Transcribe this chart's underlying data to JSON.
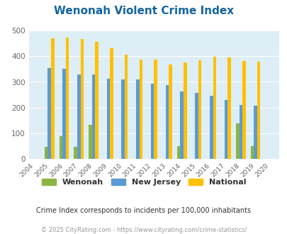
{
  "title": "Wenonah Violent Crime Index",
  "years": [
    2004,
    2005,
    2006,
    2007,
    2008,
    2009,
    2010,
    2011,
    2012,
    2013,
    2014,
    2015,
    2016,
    2017,
    2018,
    2019,
    2020
  ],
  "wenonah": [
    0,
    47,
    90,
    47,
    133,
    0,
    0,
    0,
    0,
    0,
    50,
    0,
    0,
    0,
    138,
    50,
    0
  ],
  "new_jersey": [
    0,
    355,
    350,
    328,
    328,
    312,
    309,
    309,
    292,
    287,
    262,
    256,
    247,
    231,
    210,
    208,
    0
  ],
  "national": [
    0,
    469,
    473,
    466,
    455,
    432,
    405,
    388,
    387,
    367,
    377,
    383,
    397,
    394,
    381,
    379,
    0
  ],
  "wenonah_color": "#8db543",
  "nj_color": "#5b9bd5",
  "national_color": "#ffc000",
  "bg_color": "#ddeef6",
  "ylim": [
    0,
    500
  ],
  "yticks": [
    0,
    100,
    200,
    300,
    400,
    500
  ],
  "subtitle": "Crime Index corresponds to incidents per 100,000 inhabitants",
  "footer": "© 2025 CityRating.com - https://www.cityrating.com/crime-statistics/",
  "title_color": "#1464a0",
  "subtitle_color": "#333333",
  "footer_color": "#999999",
  "legend_labels": [
    "Wenonah",
    "New Jersey",
    "National"
  ],
  "bar_width": 0.22
}
